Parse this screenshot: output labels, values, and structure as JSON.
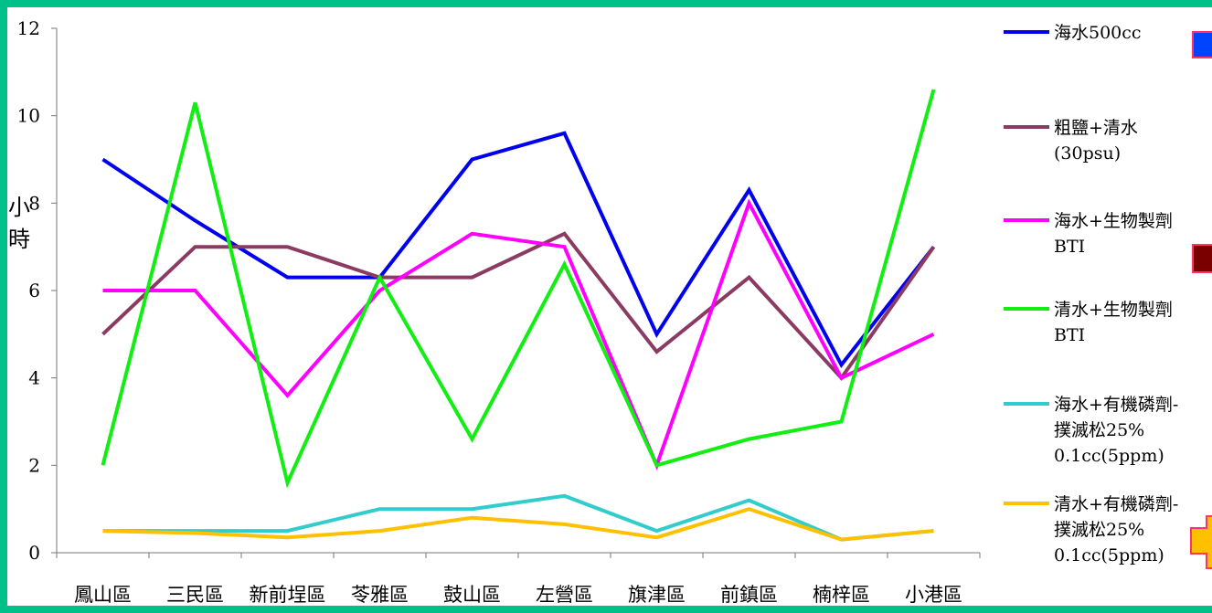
{
  "chart_data": {
    "type": "line",
    "ylabel_chars": [
      "小",
      "時"
    ],
    "ylim": [
      0,
      12
    ],
    "yticks": [
      "0",
      "2",
      "4",
      "6",
      "8",
      "10",
      "12"
    ],
    "categories": [
      "鳳山區",
      "三民區",
      "新前埕區",
      "苓雅區",
      "鼓山區",
      "左營區",
      "旗津區",
      "前鎮區",
      "楠梓區",
      "小港區"
    ],
    "legend_position": "right",
    "series": [
      {
        "name_lines": [
          "海水500cc"
        ],
        "color": "#0000ee",
        "values": [
          9.0,
          7.6,
          6.3,
          6.3,
          9.0,
          9.6,
          5.0,
          8.3,
          4.3,
          7.0
        ]
      },
      {
        "name_lines": [
          "粗鹽+清水",
          "(30psu)"
        ],
        "color": "#8b3a62",
        "values": [
          5.0,
          7.0,
          7.0,
          6.3,
          6.3,
          7.3,
          4.6,
          6.3,
          4.0,
          7.0
        ]
      },
      {
        "name_lines": [
          "海水+生物製劑",
          "BTI"
        ],
        "color": "#ff00ff",
        "values": [
          6.0,
          6.0,
          3.6,
          6.0,
          7.3,
          7.0,
          2.0,
          8.0,
          4.0,
          5.0
        ]
      },
      {
        "name_lines": [
          "清水+生物製劑",
          "BTI"
        ],
        "color": "#11ee11",
        "values": [
          2.0,
          10.3,
          1.6,
          6.3,
          2.6,
          6.6,
          2.0,
          2.6,
          3.0,
          10.6
        ]
      },
      {
        "name_lines": [
          "海水+有機磷劑-",
          "撲滅松25%",
          "0.1cc(5ppm)"
        ],
        "color": "#33cccc",
        "values": [
          0.5,
          0.5,
          0.5,
          1.0,
          1.0,
          1.3,
          0.5,
          1.2,
          0.3,
          0.5
        ]
      },
      {
        "name_lines": [
          "清水+有機磷劑-",
          "撲滅松25%",
          "0.1cc(5ppm)"
        ],
        "color": "#ffc000",
        "values": [
          0.5,
          0.45,
          0.35,
          0.5,
          0.8,
          0.65,
          0.35,
          1.0,
          0.3,
          0.5
        ]
      }
    ],
    "side_markers": [
      {
        "name": "blue-marker",
        "fill": "#0044ff",
        "stroke": "#ff3366"
      },
      {
        "name": "maroon-marker",
        "fill": "#7a0000",
        "stroke": "#ff3366"
      },
      {
        "name": "orange-marker",
        "fill": "#ffc000",
        "stroke": "#ff3366"
      }
    ]
  }
}
